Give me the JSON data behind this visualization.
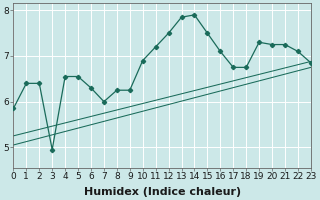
{
  "xlabel": "Humidex (Indice chaleur)",
  "background_color": "#cce8e8",
  "grid_color": "#b0d4d4",
  "line_color": "#1a6b5a",
  "x_ticks": [
    0,
    1,
    2,
    3,
    4,
    5,
    6,
    7,
    8,
    9,
    10,
    11,
    12,
    13,
    14,
    15,
    16,
    17,
    18,
    19,
    20,
    21,
    22,
    23
  ],
  "y_ticks": [
    5,
    6,
    7,
    8
  ],
  "xlim": [
    0,
    23
  ],
  "ylim": [
    4.55,
    8.15
  ],
  "main_line": {
    "x": [
      0,
      1,
      2,
      3,
      4,
      5,
      6,
      7,
      8,
      9,
      10,
      11,
      12,
      13,
      14,
      15,
      16,
      17,
      18,
      19,
      20,
      21,
      22,
      23
    ],
    "y": [
      5.85,
      6.4,
      6.4,
      4.95,
      6.55,
      6.55,
      6.3,
      6.0,
      6.25,
      6.25,
      6.9,
      7.2,
      7.5,
      7.85,
      7.9,
      7.5,
      7.1,
      6.75,
      6.75,
      7.3,
      7.25,
      7.25,
      7.1,
      6.85
    ]
  },
  "reg_line1": {
    "x": [
      0,
      23
    ],
    "y": [
      5.05,
      6.75
    ]
  },
  "reg_line2": {
    "x": [
      0,
      23
    ],
    "y": [
      5.25,
      6.88
    ]
  },
  "xlabel_fontsize": 8,
  "tick_fontsize": 6.5
}
